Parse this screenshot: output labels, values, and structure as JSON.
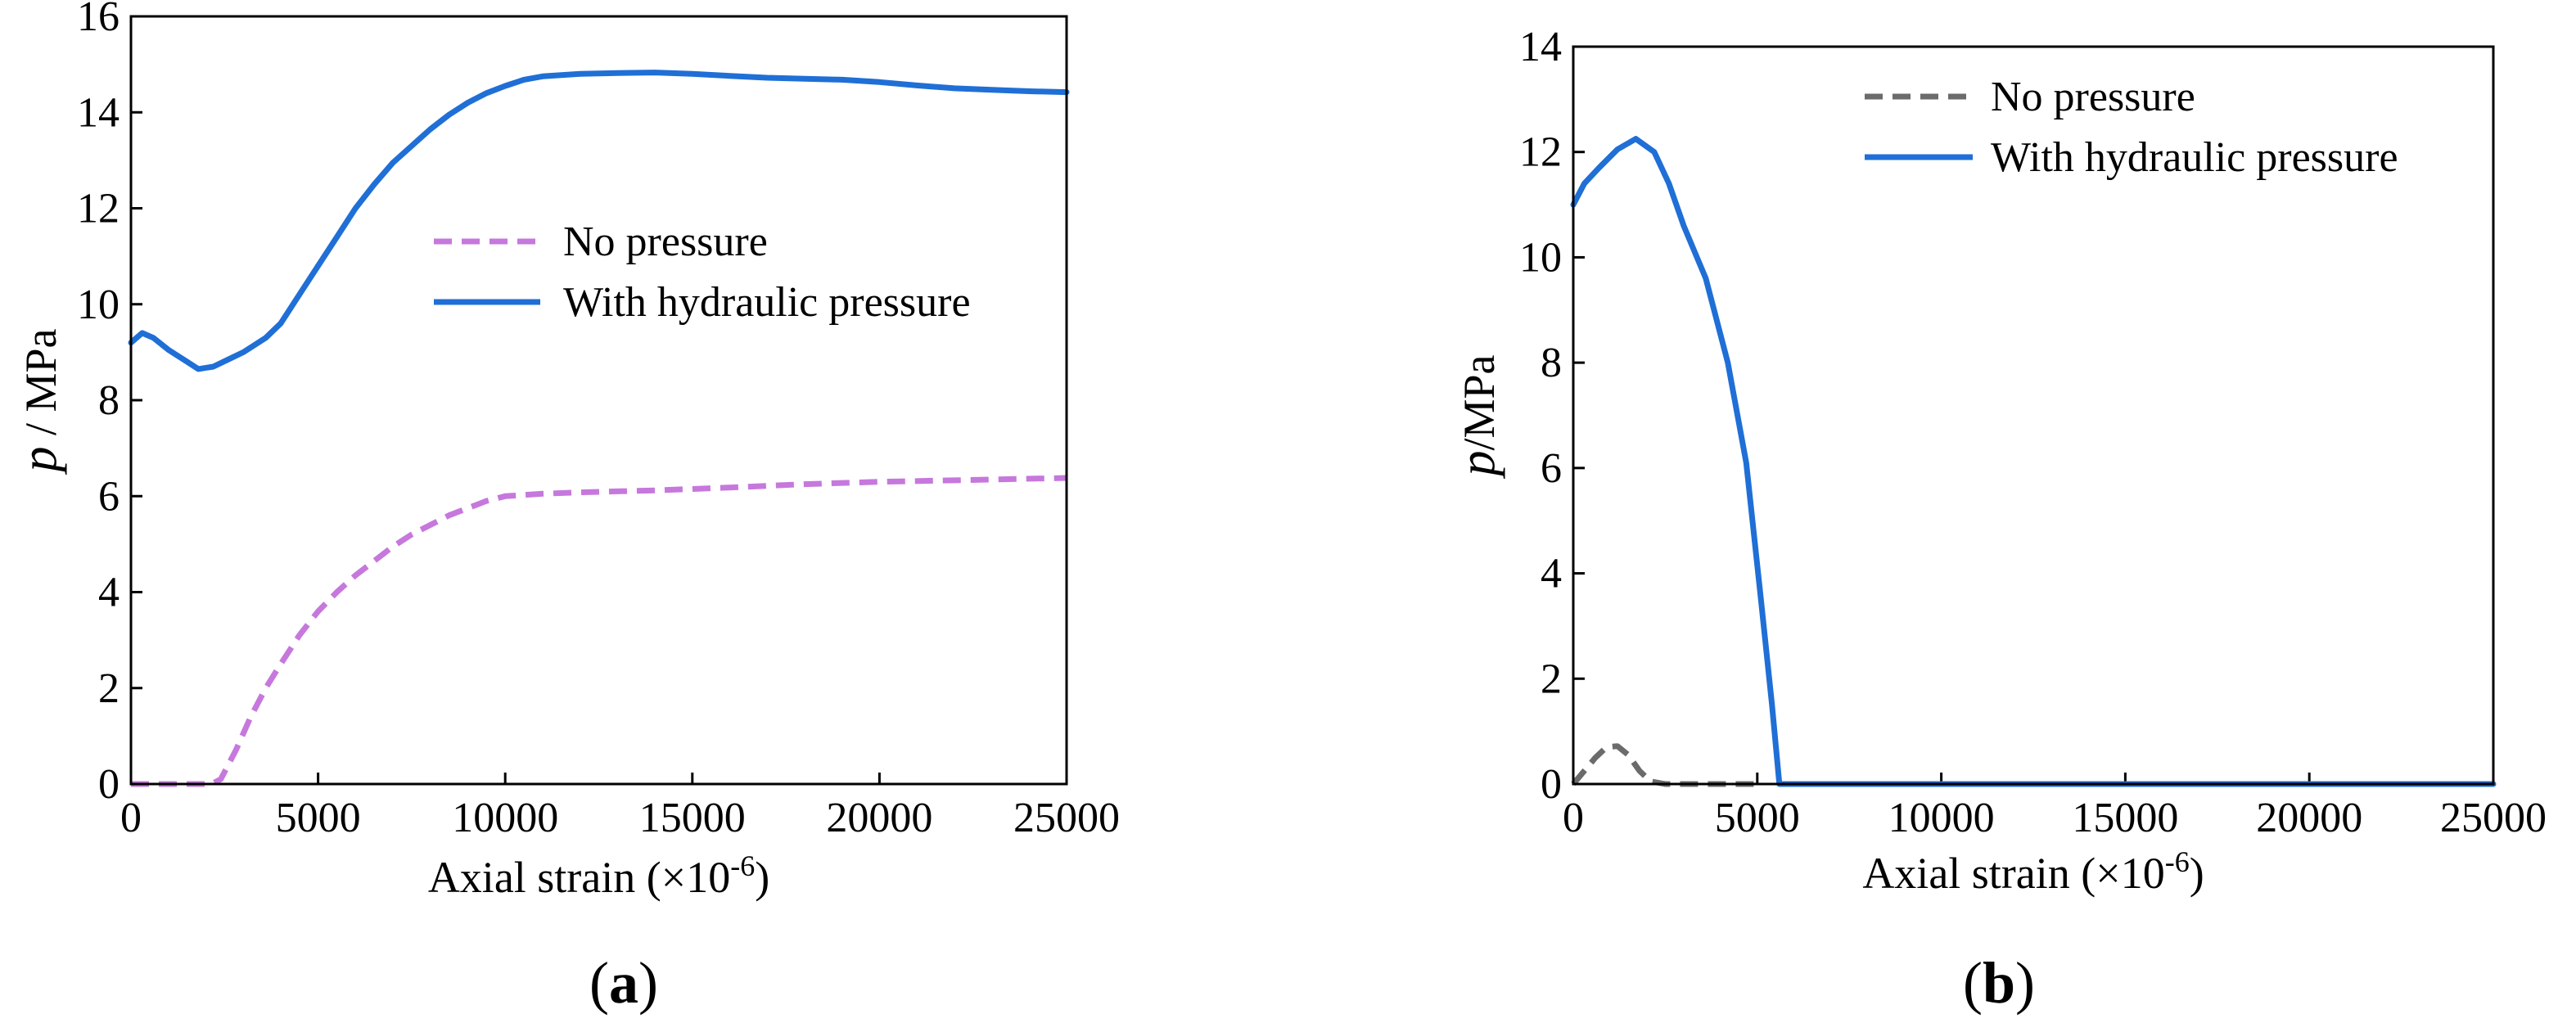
{
  "chart_data": [
    {
      "type": "line",
      "panel_label": "a",
      "title": "",
      "xlabel": "Axial strain (×10",
      "xlabel_exp": "-6",
      "xlabel_close": ")",
      "ylabel_var": "p",
      "ylabel_unit": " / MPa",
      "xlim": [
        0,
        25000
      ],
      "ylim": [
        0,
        16
      ],
      "xticks": [
        0,
        5000,
        10000,
        15000,
        20000,
        25000
      ],
      "yticks": [
        0,
        2,
        4,
        6,
        8,
        10,
        12,
        14,
        16
      ],
      "legend_position": "center-right",
      "series": [
        {
          "name": "No pressure",
          "color": "#c678dd",
          "dash": true,
          "x": [
            0,
            500,
            1000,
            1500,
            2000,
            2200,
            2400,
            2800,
            3200,
            3600,
            4000,
            4500,
            5000,
            5500,
            6000,
            6500,
            7000,
            7500,
            8000,
            8500,
            9000,
            9500,
            10000,
            11000,
            12000,
            14000,
            16000,
            18000,
            20000,
            22000,
            25000
          ],
          "y": [
            0,
            0,
            0,
            0,
            0,
            0.02,
            0.1,
            0.7,
            1.4,
            2.0,
            2.5,
            3.1,
            3.6,
            4.0,
            4.35,
            4.65,
            4.95,
            5.2,
            5.4,
            5.6,
            5.75,
            5.9,
            6.0,
            6.05,
            6.08,
            6.12,
            6.18,
            6.25,
            6.3,
            6.33,
            6.38
          ]
        },
        {
          "name": "With hydraulic pressure",
          "color": "#1f6fd6",
          "dash": false,
          "x": [
            0,
            300,
            600,
            1000,
            1500,
            1800,
            2200,
            2600,
            3000,
            3600,
            4000,
            4500,
            5000,
            5500,
            6000,
            6500,
            7000,
            7500,
            8000,
            8500,
            9000,
            9500,
            10000,
            10500,
            11000,
            12000,
            13000,
            14000,
            15000,
            16000,
            17000,
            18000,
            19000,
            20000,
            21000,
            22000,
            23000,
            24000,
            25000
          ],
          "y": [
            9.2,
            9.4,
            9.3,
            9.05,
            8.8,
            8.65,
            8.7,
            8.85,
            9.0,
            9.3,
            9.6,
            10.2,
            10.8,
            11.4,
            12.0,
            12.5,
            12.95,
            13.3,
            13.65,
            13.95,
            14.2,
            14.4,
            14.55,
            14.68,
            14.75,
            14.8,
            14.82,
            14.83,
            14.8,
            14.76,
            14.72,
            14.7,
            14.68,
            14.63,
            14.56,
            14.5,
            14.47,
            14.44,
            14.42
          ]
        }
      ]
    },
    {
      "type": "line",
      "panel_label": "b",
      "title": "",
      "xlabel": "Axial strain (×10",
      "xlabel_exp": "-6",
      "xlabel_close": ")",
      "ylabel_var": "p",
      "ylabel_unit": "/MPa",
      "xlim": [
        0,
        25000
      ],
      "ylim": [
        0,
        14
      ],
      "xticks": [
        0,
        5000,
        10000,
        15000,
        20000,
        25000
      ],
      "yticks": [
        0,
        2,
        4,
        6,
        8,
        10,
        12,
        14
      ],
      "legend_position": "top-right",
      "series": [
        {
          "name": "No pressure",
          "color": "#6b6b6b",
          "dash": true,
          "x": [
            0,
            300,
            600,
            900,
            1200,
            1500,
            1800,
            2100,
            2500,
            3000,
            4000,
            5000
          ],
          "y": [
            0,
            0.25,
            0.5,
            0.7,
            0.72,
            0.55,
            0.25,
            0.05,
            0,
            0,
            0,
            0
          ]
        },
        {
          "name": "With hydraulic pressure",
          "color": "#1f6fd6",
          "dash": false,
          "x": [
            0,
            300,
            700,
            1200,
            1700,
            2200,
            2600,
            3000,
            3600,
            4200,
            4700,
            5100,
            5400,
            5600,
            8000,
            12000,
            16000,
            20000,
            25000
          ],
          "y": [
            11.0,
            11.4,
            11.7,
            12.05,
            12.25,
            12.0,
            11.4,
            10.6,
            9.6,
            8.0,
            6.1,
            3.5,
            1.5,
            0,
            0,
            0,
            0,
            0,
            0
          ]
        }
      ]
    }
  ]
}
